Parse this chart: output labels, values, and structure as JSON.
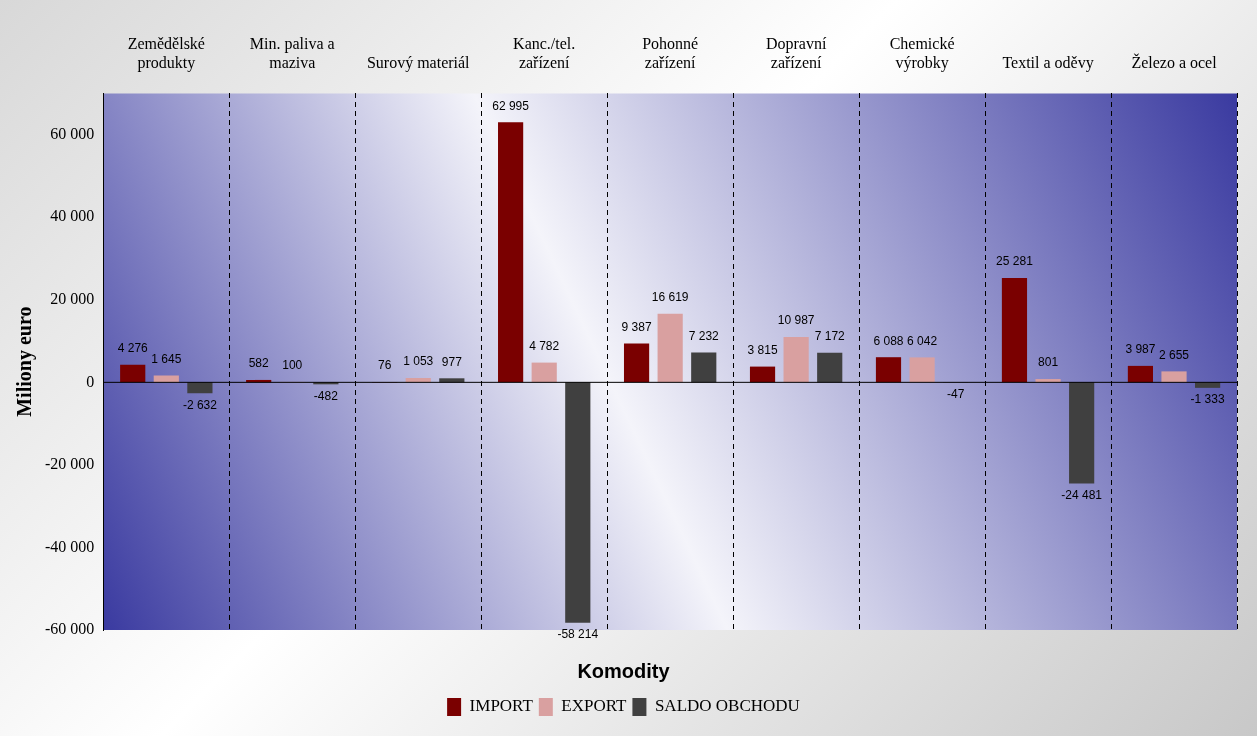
{
  "chart_data": {
    "type": "bar",
    "xlabel": "Komodity",
    "ylabel": "Miliony euro",
    "categories": [
      "Zemědělské produkty",
      "Min. paliva a maziva",
      "Surový materiál",
      "Kanc./tel. zařízení",
      "Pohonné zařízení",
      "Dopravní zařízení",
      "Chemické výrobky",
      "Textil a oděvy",
      "Železo a ocel"
    ],
    "series": [
      {
        "name": "IMPORT",
        "color": "#7a0000",
        "values": [
          4276,
          582,
          76,
          62995,
          9387,
          3815,
          6088,
          25281,
          3987
        ],
        "value_labels": [
          "4 276",
          "582",
          "76",
          "62 995",
          "9 387",
          "3 815",
          "6 088",
          "25 281",
          "3 987"
        ]
      },
      {
        "name": "EXPORT",
        "color": "#d9a0a0",
        "values": [
          1645,
          100,
          1053,
          4782,
          16619,
          10987,
          6042,
          801,
          2655
        ],
        "value_labels": [
          "1 645",
          "100",
          "1 053",
          "4 782",
          "16 619",
          "10 987",
          "6 042",
          "801",
          "2 655"
        ]
      },
      {
        "name": "SALDO OBCHODU",
        "color": "#404040",
        "values": [
          -2632,
          -482,
          977,
          -58214,
          7232,
          7172,
          -47,
          -24481,
          -1333
        ],
        "value_labels": [
          "-2 632",
          "-482",
          "977",
          "-58 214",
          "7 232",
          "7 172",
          "-47",
          "-24 481",
          "-1 333"
        ]
      }
    ],
    "ylim": [
      -60000,
      70000
    ],
    "yticks": [
      {
        "value": -60000,
        "label": "-60 000"
      },
      {
        "value": -40000,
        "label": "-40 000"
      },
      {
        "value": -20000,
        "label": "-20 000"
      },
      {
        "value": 0,
        "label": "0"
      },
      {
        "value": 20000,
        "label": "20 000"
      },
      {
        "value": 40000,
        "label": "40 000"
      },
      {
        "value": 60000,
        "label": "60 000"
      }
    ],
    "grid": "x",
    "legend": "bottom"
  }
}
